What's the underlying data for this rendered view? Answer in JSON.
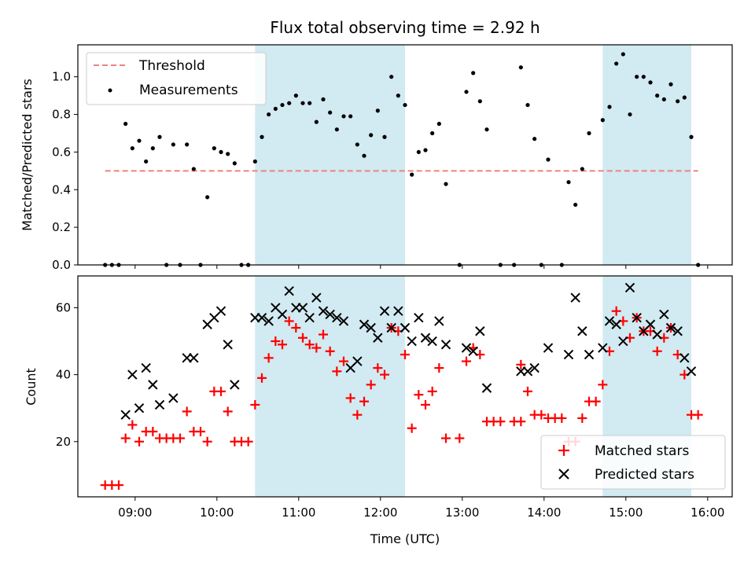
{
  "chart_data": [
    {
      "type": "scatter",
      "title": "Flux total observing time = 2.92 h",
      "xlabel": "",
      "ylabel": "Matched/Predicted stars",
      "xlim": [
        "08:18",
        "16:18"
      ],
      "ylim": [
        0,
        1.17
      ],
      "yticks": [
        0.0,
        0.2,
        0.4,
        0.6,
        0.8,
        1.0
      ],
      "ytick_labels": [
        "0.0",
        "0.2",
        "0.4",
        "0.6",
        "0.8",
        "1.0"
      ],
      "grid": false,
      "legend_position": "top-left",
      "legend": [
        "Threshold",
        "Measurements"
      ],
      "threshold": {
        "name": "Threshold",
        "y": 0.5,
        "x": [
          "08:38",
          "15:53"
        ],
        "color": "#f08080",
        "style": "dashed"
      },
      "shaded_regions": [
        {
          "x0": "10:28",
          "x1": "12:18",
          "color": "#add8e6"
        },
        {
          "x0": "14:43",
          "x1": "15:48",
          "color": "#add8e6"
        }
      ],
      "series": [
        {
          "name": "Measurements",
          "color": "#000000",
          "points": [
            [
              "08:38",
              0.0
            ],
            [
              "08:43",
              0.0
            ],
            [
              "08:48",
              0.0
            ],
            [
              "08:53",
              0.75
            ],
            [
              "08:58",
              0.62
            ],
            [
              "09:03",
              0.66
            ],
            [
              "09:08",
              0.55
            ],
            [
              "09:13",
              0.62
            ],
            [
              "09:18",
              0.68
            ],
            [
              "09:23",
              0.0
            ],
            [
              "09:28",
              0.64
            ],
            [
              "09:33",
              0.0
            ],
            [
              "09:38",
              0.64
            ],
            [
              "09:43",
              0.51
            ],
            [
              "09:48",
              0.0
            ],
            [
              "09:53",
              0.36
            ],
            [
              "09:58",
              0.62
            ],
            [
              "10:03",
              0.6
            ],
            [
              "10:08",
              0.59
            ],
            [
              "10:13",
              0.54
            ],
            [
              "10:18",
              0.0
            ],
            [
              "10:23",
              0.0
            ],
            [
              "10:28",
              0.55
            ],
            [
              "10:33",
              0.68
            ],
            [
              "10:38",
              0.8
            ],
            [
              "10:43",
              0.83
            ],
            [
              "10:48",
              0.85
            ],
            [
              "10:53",
              0.86
            ],
            [
              "10:58",
              0.9
            ],
            [
              "11:03",
              0.86
            ],
            [
              "11:08",
              0.86
            ],
            [
              "11:13",
              0.76
            ],
            [
              "11:18",
              0.88
            ],
            [
              "11:23",
              0.81
            ],
            [
              "11:28",
              0.72
            ],
            [
              "11:33",
              0.79
            ],
            [
              "11:38",
              0.79
            ],
            [
              "11:43",
              0.64
            ],
            [
              "11:48",
              0.58
            ],
            [
              "11:53",
              0.69
            ],
            [
              "11:58",
              0.82
            ],
            [
              "12:03",
              0.68
            ],
            [
              "12:08",
              1.0
            ],
            [
              "12:13",
              0.9
            ],
            [
              "12:18",
              0.85
            ],
            [
              "12:23",
              0.48
            ],
            [
              "12:28",
              0.6
            ],
            [
              "12:33",
              0.61
            ],
            [
              "12:38",
              0.7
            ],
            [
              "12:43",
              0.75
            ],
            [
              "12:48",
              0.43
            ],
            [
              "12:58",
              0.0
            ],
            [
              "13:03",
              0.92
            ],
            [
              "13:08",
              1.02
            ],
            [
              "13:13",
              0.87
            ],
            [
              "13:18",
              0.72
            ],
            [
              "13:28",
              0.0
            ],
            [
              "13:38",
              0.0
            ],
            [
              "13:43",
              1.05
            ],
            [
              "13:48",
              0.85
            ],
            [
              "13:53",
              0.67
            ],
            [
              "13:58",
              0.0
            ],
            [
              "14:03",
              0.56
            ],
            [
              "14:13",
              0.0
            ],
            [
              "14:18",
              0.44
            ],
            [
              "14:23",
              0.32
            ],
            [
              "14:28",
              0.51
            ],
            [
              "14:33",
              0.7
            ],
            [
              "14:43",
              0.77
            ],
            [
              "14:48",
              0.84
            ],
            [
              "14:53",
              1.07
            ],
            [
              "14:58",
              1.12
            ],
            [
              "15:03",
              0.8
            ],
            [
              "15:08",
              1.0
            ],
            [
              "15:13",
              1.0
            ],
            [
              "15:18",
              0.97
            ],
            [
              "15:23",
              0.9
            ],
            [
              "15:28",
              0.88
            ],
            [
              "15:33",
              0.96
            ],
            [
              "15:38",
              0.87
            ],
            [
              "15:43",
              0.89
            ],
            [
              "15:48",
              0.68
            ],
            [
              "15:53",
              0.0
            ]
          ]
        }
      ]
    },
    {
      "type": "scatter",
      "title": "",
      "xlabel": "Time (UTC)",
      "ylabel": "Count",
      "xlim": [
        "08:18",
        "16:18"
      ],
      "xticks": [
        "09:00",
        "10:00",
        "11:00",
        "12:00",
        "13:00",
        "14:00",
        "15:00",
        "16:00"
      ],
      "ylim": [
        3.5,
        69.5
      ],
      "yticks": [
        20,
        40,
        60
      ],
      "grid": false,
      "legend_position": "bottom-right",
      "legend": [
        "Matched stars",
        "Predicted stars"
      ],
      "shaded_regions": [
        {
          "x0": "10:28",
          "x1": "12:18",
          "color": "#add8e6"
        },
        {
          "x0": "14:43",
          "x1": "15:48",
          "color": "#add8e6"
        }
      ],
      "series": [
        {
          "name": "Matched stars",
          "marker": "+",
          "color": "#ff0000",
          "points": [
            [
              "08:38",
              7
            ],
            [
              "08:43",
              7
            ],
            [
              "08:48",
              7
            ],
            [
              "08:53",
              21
            ],
            [
              "08:58",
              25
            ],
            [
              "09:03",
              20
            ],
            [
              "09:08",
              23
            ],
            [
              "09:13",
              23
            ],
            [
              "09:18",
              21
            ],
            [
              "09:23",
              21
            ],
            [
              "09:28",
              21
            ],
            [
              "09:33",
              21
            ],
            [
              "09:38",
              29
            ],
            [
              "09:43",
              23
            ],
            [
              "09:48",
              23
            ],
            [
              "09:53",
              20
            ],
            [
              "09:58",
              35
            ],
            [
              "10:03",
              35
            ],
            [
              "10:08",
              29
            ],
            [
              "10:13",
              20
            ],
            [
              "10:18",
              20
            ],
            [
              "10:23",
              20
            ],
            [
              "10:28",
              31
            ],
            [
              "10:33",
              39
            ],
            [
              "10:38",
              45
            ],
            [
              "10:43",
              50
            ],
            [
              "10:48",
              49
            ],
            [
              "10:53",
              56
            ],
            [
              "10:58",
              54
            ],
            [
              "11:03",
              51
            ],
            [
              "11:08",
              49
            ],
            [
              "11:13",
              48
            ],
            [
              "11:18",
              52
            ],
            [
              "11:23",
              47
            ],
            [
              "11:28",
              41
            ],
            [
              "11:33",
              44
            ],
            [
              "11:38",
              33
            ],
            [
              "11:43",
              28
            ],
            [
              "11:48",
              32
            ],
            [
              "11:53",
              37
            ],
            [
              "11:58",
              42
            ],
            [
              "12:03",
              40
            ],
            [
              "12:08",
              54
            ],
            [
              "12:13",
              53
            ],
            [
              "12:18",
              46
            ],
            [
              "12:23",
              24
            ],
            [
              "12:28",
              34
            ],
            [
              "12:33",
              31
            ],
            [
              "12:38",
              35
            ],
            [
              "12:43",
              42
            ],
            [
              "12:48",
              21
            ],
            [
              "12:58",
              21
            ],
            [
              "13:03",
              44
            ],
            [
              "13:08",
              48
            ],
            [
              "13:13",
              46
            ],
            [
              "13:18",
              26
            ],
            [
              "13:23",
              26
            ],
            [
              "13:28",
              26
            ],
            [
              "13:38",
              26
            ],
            [
              "13:43",
              26
            ],
            [
              "13:43",
              43
            ],
            [
              "13:48",
              35
            ],
            [
              "13:53",
              28
            ],
            [
              "13:58",
              28
            ],
            [
              "14:03",
              27
            ],
            [
              "14:08",
              27
            ],
            [
              "14:13",
              27
            ],
            [
              "14:18",
              20
            ],
            [
              "14:23",
              20
            ],
            [
              "14:28",
              27
            ],
            [
              "14:33",
              32
            ],
            [
              "14:38",
              32
            ],
            [
              "14:43",
              37
            ],
            [
              "14:48",
              47
            ],
            [
              "14:53",
              59
            ],
            [
              "14:58",
              56
            ],
            [
              "15:03",
              51
            ],
            [
              "15:08",
              57
            ],
            [
              "15:13",
              53
            ],
            [
              "15:18",
              53
            ],
            [
              "15:23",
              47
            ],
            [
              "15:28",
              51
            ],
            [
              "15:33",
              54
            ],
            [
              "15:38",
              46
            ],
            [
              "15:43",
              40
            ],
            [
              "15:48",
              28
            ],
            [
              "15:53",
              28
            ]
          ]
        },
        {
          "name": "Predicted stars",
          "marker": "x",
          "color": "#000000",
          "points": [
            [
              "08:53",
              28
            ],
            [
              "08:58",
              40
            ],
            [
              "09:03",
              30
            ],
            [
              "09:08",
              42
            ],
            [
              "09:13",
              37
            ],
            [
              "09:18",
              31
            ],
            [
              "09:28",
              33
            ],
            [
              "09:38",
              45
            ],
            [
              "09:43",
              45
            ],
            [
              "09:53",
              55
            ],
            [
              "09:58",
              57
            ],
            [
              "10:03",
              59
            ],
            [
              "10:08",
              49
            ],
            [
              "10:13",
              37
            ],
            [
              "10:28",
              57
            ],
            [
              "10:33",
              57
            ],
            [
              "10:38",
              56
            ],
            [
              "10:43",
              60
            ],
            [
              "10:48",
              58
            ],
            [
              "10:53",
              65
            ],
            [
              "10:58",
              60
            ],
            [
              "11:03",
              60
            ],
            [
              "11:08",
              57
            ],
            [
              "11:13",
              63
            ],
            [
              "11:18",
              59
            ],
            [
              "11:23",
              58
            ],
            [
              "11:28",
              57
            ],
            [
              "11:33",
              56
            ],
            [
              "11:38",
              42
            ],
            [
              "11:43",
              44
            ],
            [
              "11:48",
              55
            ],
            [
              "11:53",
              54
            ],
            [
              "11:58",
              51
            ],
            [
              "12:03",
              59
            ],
            [
              "12:08",
              54
            ],
            [
              "12:13",
              59
            ],
            [
              "12:18",
              54
            ],
            [
              "12:23",
              50
            ],
            [
              "12:28",
              57
            ],
            [
              "12:33",
              51
            ],
            [
              "12:38",
              50
            ],
            [
              "12:43",
              56
            ],
            [
              "12:48",
              49
            ],
            [
              "13:03",
              48
            ],
            [
              "13:08",
              47
            ],
            [
              "13:13",
              53
            ],
            [
              "13:18",
              36
            ],
            [
              "13:43",
              41
            ],
            [
              "13:48",
              41
            ],
            [
              "13:53",
              42
            ],
            [
              "14:03",
              48
            ],
            [
              "14:18",
              46
            ],
            [
              "14:23",
              63
            ],
            [
              "14:28",
              53
            ],
            [
              "14:33",
              46
            ],
            [
              "14:43",
              48
            ],
            [
              "14:48",
              56
            ],
            [
              "14:53",
              55
            ],
            [
              "14:58",
              50
            ],
            [
              "15:03",
              66
            ],
            [
              "15:08",
              57
            ],
            [
              "15:13",
              53
            ],
            [
              "15:18",
              55
            ],
            [
              "15:23",
              52
            ],
            [
              "15:28",
              58
            ],
            [
              "15:33",
              54
            ],
            [
              "15:38",
              53
            ],
            [
              "15:43",
              45
            ],
            [
              "15:48",
              41
            ]
          ]
        }
      ]
    }
  ]
}
